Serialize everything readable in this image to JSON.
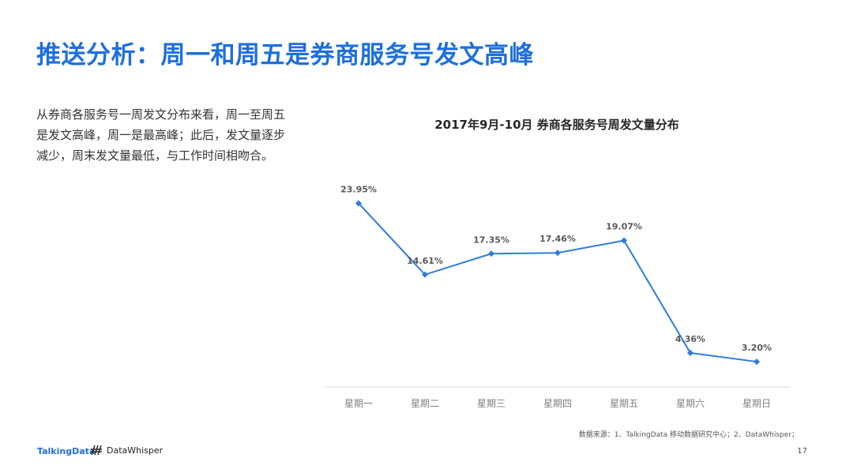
{
  "page": {
    "title": "推送分析：周一和周五是券商服务号发文高峰",
    "description": "从券商各服务号一周发文分布来看，周一至周五是发文高峰，周一是最高峰；此后，发文量逐步减少，周末发文量最低，与工作时间相吻合。",
    "source": "数据来源：1、TalkingData 移动数据研究中心；2、DataWhisper；",
    "page_number": "17",
    "logo_talkingdata": "TalkingData",
    "logo_datawhisper": "DataWhisper"
  },
  "colors": {
    "accent": "#1e6fdb",
    "line": "#2f7bdc",
    "axis": "#d9d9d9",
    "label": "#595959"
  },
  "chart_data": {
    "type": "line",
    "title": "2017年9月-10月 券商各服务号周发文量分布",
    "categories": [
      "星期一",
      "星期二",
      "星期三",
      "星期四",
      "星期五",
      "星期六",
      "星期日"
    ],
    "values": [
      23.95,
      14.61,
      17.35,
      17.46,
      19.07,
      4.36,
      3.2
    ],
    "labels": [
      "23.95%",
      "14.61%",
      "17.35%",
      "17.46%",
      "19.07%",
      "4.36%",
      "3.20%"
    ],
    "marker": "diamond",
    "grid": false,
    "legend": "none"
  }
}
